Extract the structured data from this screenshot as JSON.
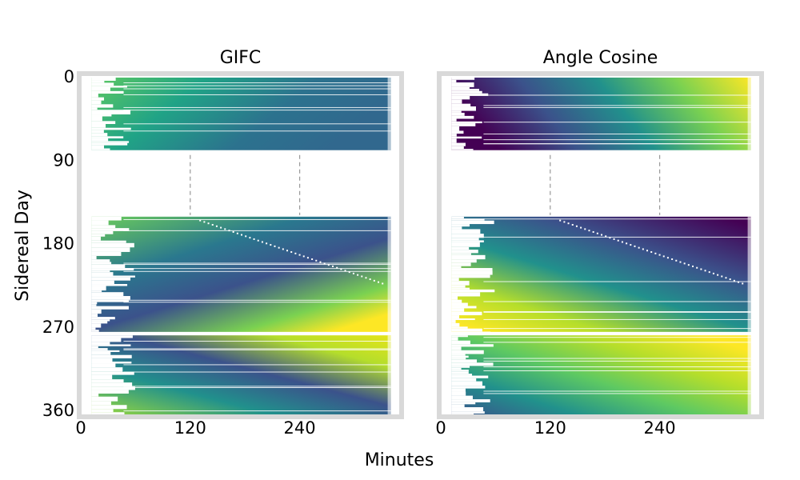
{
  "chart_data": {
    "type": "heatmap",
    "xlabel": "Minutes",
    "ylabel": "Sidereal Day",
    "colormap": "viridis",
    "xlim": [
      0,
      350
    ],
    "ylim": [
      365,
      0
    ],
    "x_ticks": [
      "0",
      "120",
      "240"
    ],
    "y_ticks": [
      "0",
      "90",
      "180",
      "270",
      "360"
    ],
    "x_tick_values": [
      0,
      120,
      240
    ],
    "y_tick_values": [
      0,
      90,
      180,
      270,
      360
    ],
    "frame_color": "#d9d9d9",
    "panels": [
      {
        "title": "GIFC",
        "day_blocks": [
          [
            0,
            80
          ],
          [
            150,
            276
          ],
          [
            278,
            365
          ]
        ],
        "minute_range": [
          10,
          340
        ],
        "gap_gridlines_x": [
          120,
          240
        ],
        "gap_days": [
          80,
          150
        ],
        "description_value_range": [
          0,
          1
        ]
      },
      {
        "title": "Angle Cosine",
        "day_blocks": [
          [
            0,
            80
          ],
          [
            150,
            276
          ],
          [
            278,
            365
          ]
        ],
        "minute_range": [
          10,
          340
        ],
        "gap_gridlines_x": [
          120,
          240
        ],
        "gap_days": [
          80,
          150
        ],
        "description_value_range": [
          0,
          1
        ]
      }
    ]
  }
}
